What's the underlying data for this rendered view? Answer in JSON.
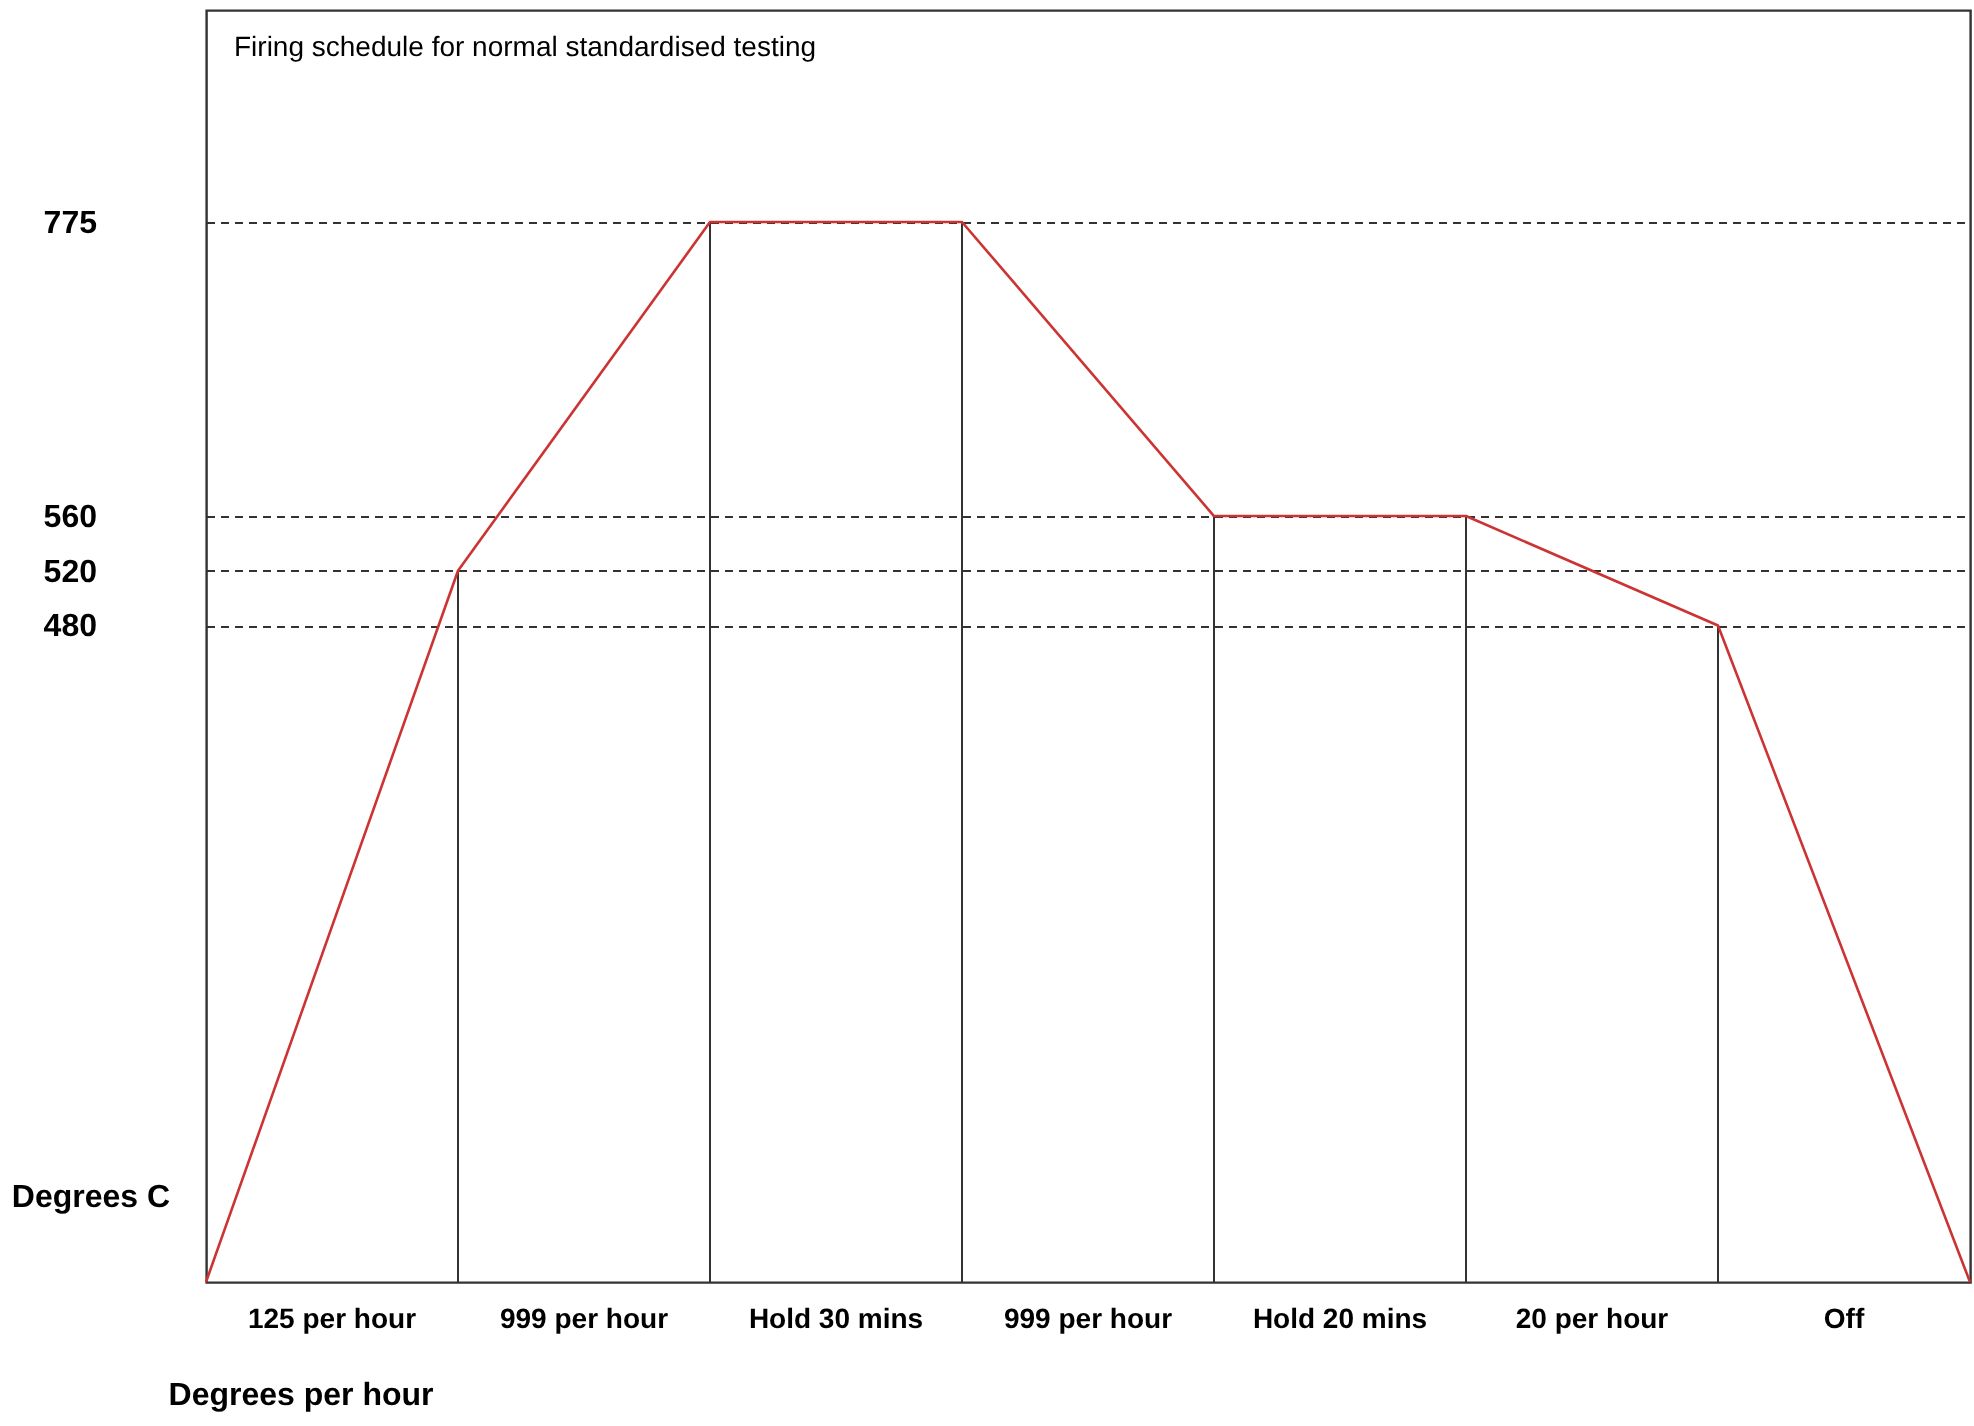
{
  "chart_data": {
    "type": "line",
    "title": "Firing schedule for normal standardised testing",
    "xlabel": "Degrees per hour",
    "ylabel": "Degrees C",
    "categories": [
      null,
      null,
      null,
      null,
      null,
      null,
      null,
      null
    ],
    "series": [
      {
        "color": "#cc3333",
        "values": [
          0,
          520,
          775,
          775,
          560,
          560,
          480,
          0
        ]
      }
    ],
    "ylim": [
      0,
      930
    ],
    "yticks": [
      480,
      520,
      560,
      775
    ],
    "grid": "y",
    "tick_labels": "y",
    "annotations": [
      "125 per hour",
      "999 per hour",
      "Hold 30 mins",
      "999 per hour",
      "Hold 20 mins",
      "20 per hour",
      "Off"
    ]
  }
}
